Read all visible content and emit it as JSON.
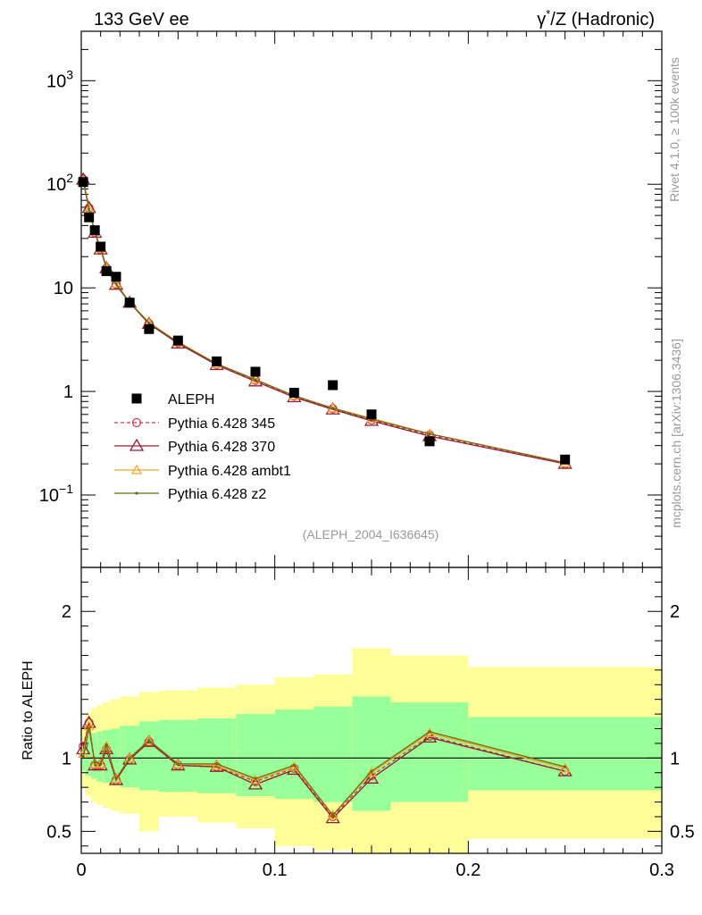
{
  "header": {
    "left": "133 GeV ee",
    "right_prefix": "γ",
    "right_sup": "*",
    "right_suffix": "/Z (Hadronic)"
  },
  "side": {
    "rivet": "Rivet 4.1.0, ≥ 100k events",
    "mcplots": "mcplots.cern.ch [arXiv:1306.3436]"
  },
  "analysis_tag": "(ALEPH_2004_I636645)",
  "ratio_ylabel": "Ratio to ALEPH",
  "colors": {
    "data": "#000000",
    "p345": "#c8394f",
    "p370": "#9b1b30",
    "ambt1": "#f5a623",
    "z2": "#6b6b1a",
    "band_inner": "#99ff99",
    "band_outer": "#ffff99",
    "tag": "#999999"
  },
  "chart_data": [
    {
      "type": "scatter",
      "scale": "log",
      "xlim": [
        0,
        0.3
      ],
      "ylim": [
        0.02,
        3000
      ],
      "yticks": [
        {
          "value": 1000,
          "base": "10",
          "exp": "3"
        },
        {
          "value": 100,
          "base": "10",
          "exp": "2"
        },
        {
          "value": 10,
          "base": "10",
          "exp": ""
        },
        {
          "value": 1,
          "base": "1",
          "exp": ""
        },
        {
          "value": 0.1,
          "base": "10",
          "exp": "−1"
        }
      ],
      "x": [
        0.001,
        0.004,
        0.007,
        0.01,
        0.013,
        0.018,
        0.025,
        0.035,
        0.05,
        0.07,
        0.09,
        0.11,
        0.13,
        0.15,
        0.18,
        0.25
      ],
      "series": [
        {
          "name": "ALEPH",
          "key": "data",
          "values": [
            105,
            48,
            36,
            25,
            14.5,
            12.8,
            7.2,
            4.0,
            3.1,
            1.95,
            1.55,
            0.97,
            1.15,
            0.6,
            0.33,
            0.22
          ]
        },
        {
          "name": "Pythia 6.428 345",
          "key": "p345",
          "values": [
            112,
            59,
            34,
            23.5,
            15.5,
            10.8,
            7.2,
            4.5,
            2.95,
            1.82,
            1.28,
            0.9,
            0.68,
            0.53,
            0.38,
            0.2
          ]
        },
        {
          "name": "Pythia 6.428 370",
          "key": "p370",
          "values": [
            111,
            59,
            34,
            23.5,
            15.5,
            10.7,
            7.2,
            4.5,
            2.9,
            1.8,
            1.25,
            0.88,
            0.67,
            0.52,
            0.37,
            0.2
          ]
        },
        {
          "name": "Pythia 6.428 ambt1",
          "key": "ambt1",
          "values": [
            108,
            58,
            35,
            24,
            15.8,
            11.0,
            7.3,
            4.6,
            3.0,
            1.85,
            1.3,
            0.91,
            0.69,
            0.55,
            0.39,
            0.205
          ]
        },
        {
          "name": "Pythia 6.428 z2",
          "key": "z2",
          "values": [
            106,
            57,
            35,
            24,
            15.8,
            11.0,
            7.2,
            4.6,
            2.98,
            1.85,
            1.3,
            0.91,
            0.69,
            0.54,
            0.39,
            0.205
          ]
        }
      ]
    },
    {
      "type": "line",
      "title": "Ratio to ALEPH",
      "xlim": [
        0,
        0.3
      ],
      "ylim": [
        0.35,
        2.3
      ],
      "xticks": [
        "0",
        "0.1",
        "0.2",
        "0.3"
      ],
      "xtick_values": [
        0,
        0.1,
        0.2,
        0.3
      ],
      "yticks": [
        "0.5",
        "1",
        "2"
      ],
      "ytick_values": [
        0.5,
        1,
        2
      ],
      "bins": [
        {
          "lo": 0.0,
          "hi": 0.002,
          "inner": [
            0.91,
            1.09
          ],
          "outer": [
            0.8,
            1.2
          ]
        },
        {
          "lo": 0.002,
          "hi": 0.005,
          "inner": [
            0.88,
            1.15
          ],
          "outer": [
            0.74,
            1.3
          ]
        },
        {
          "lo": 0.005,
          "hi": 0.008,
          "inner": [
            0.86,
            1.17
          ],
          "outer": [
            0.7,
            1.34
          ]
        },
        {
          "lo": 0.008,
          "hi": 0.011,
          "inner": [
            0.84,
            1.18
          ],
          "outer": [
            0.68,
            1.36
          ]
        },
        {
          "lo": 0.011,
          "hi": 0.015,
          "inner": [
            0.83,
            1.19
          ],
          "outer": [
            0.66,
            1.38
          ]
        },
        {
          "lo": 0.015,
          "hi": 0.02,
          "inner": [
            0.82,
            1.2
          ],
          "outer": [
            0.64,
            1.4
          ]
        },
        {
          "lo": 0.02,
          "hi": 0.03,
          "inner": [
            0.8,
            1.22
          ],
          "outer": [
            0.62,
            1.42
          ]
        },
        {
          "lo": 0.03,
          "hi": 0.04,
          "inner": [
            0.78,
            1.25
          ],
          "outer": [
            0.5,
            1.45
          ]
        },
        {
          "lo": 0.04,
          "hi": 0.06,
          "inner": [
            0.77,
            1.26
          ],
          "outer": [
            0.6,
            1.46
          ]
        },
        {
          "lo": 0.06,
          "hi": 0.08,
          "inner": [
            0.76,
            1.27
          ],
          "outer": [
            0.56,
            1.48
          ]
        },
        {
          "lo": 0.08,
          "hi": 0.1,
          "inner": [
            0.74,
            1.3
          ],
          "outer": [
            0.52,
            1.5
          ]
        },
        {
          "lo": 0.1,
          "hi": 0.12,
          "inner": [
            0.72,
            1.33
          ],
          "outer": [
            0.4,
            1.55
          ]
        },
        {
          "lo": 0.12,
          "hi": 0.14,
          "inner": [
            0.7,
            1.35
          ],
          "outer": [
            0.37,
            1.57
          ]
        },
        {
          "lo": 0.14,
          "hi": 0.16,
          "inner": [
            0.64,
            1.42
          ],
          "outer": [
            0.35,
            1.75
          ]
        },
        {
          "lo": 0.16,
          "hi": 0.2,
          "inner": [
            0.7,
            1.38
          ],
          "outer": [
            0.35,
            1.7
          ]
        },
        {
          "lo": 0.2,
          "hi": 0.3,
          "inner": [
            0.78,
            1.28
          ],
          "outer": [
            0.45,
            1.62
          ]
        }
      ],
      "x": [
        0.001,
        0.004,
        0.007,
        0.01,
        0.013,
        0.018,
        0.025,
        0.035,
        0.05,
        0.07,
        0.09,
        0.11,
        0.13,
        0.15,
        0.18,
        0.25
      ],
      "series": [
        {
          "name": "Pythia 6.428 345",
          "key": "p345",
          "values": [
            1.08,
            1.24,
            0.95,
            0.95,
            1.06,
            0.85,
            0.99,
            1.11,
            0.95,
            0.94,
            0.84,
            0.93,
            0.6,
            0.88,
            1.15,
            0.91
          ]
        },
        {
          "name": "Pythia 6.428 370",
          "key": "p370",
          "values": [
            1.06,
            1.24,
            0.95,
            0.95,
            1.06,
            0.85,
            0.99,
            1.11,
            0.95,
            0.94,
            0.82,
            0.92,
            0.59,
            0.86,
            1.14,
            0.91
          ]
        },
        {
          "name": "Pythia 6.428 ambt1",
          "key": "ambt1",
          "values": [
            1.03,
            1.22,
            0.96,
            0.96,
            1.08,
            0.86,
            1.0,
            1.12,
            0.96,
            0.95,
            0.85,
            0.94,
            0.61,
            0.9,
            1.17,
            0.93
          ]
        },
        {
          "name": "Pythia 6.428 z2",
          "key": "z2",
          "values": [
            1.01,
            1.2,
            0.97,
            0.96,
            1.09,
            0.86,
            1.0,
            1.12,
            0.96,
            0.96,
            0.86,
            0.95,
            0.61,
            0.91,
            1.18,
            0.94
          ]
        }
      ]
    }
  ]
}
